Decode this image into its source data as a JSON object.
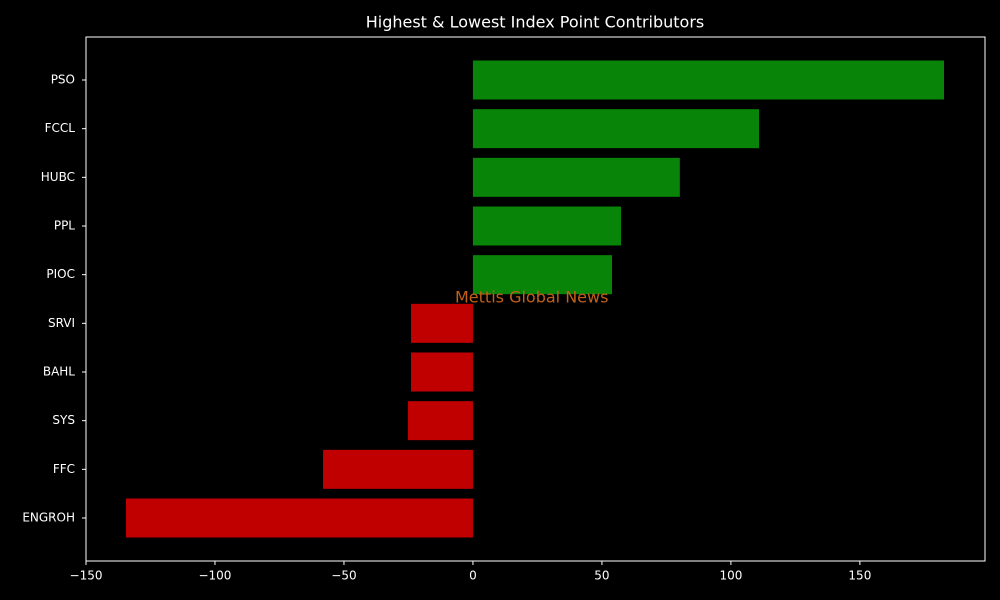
{
  "chart_data": {
    "type": "hbar",
    "title": "Highest & Lowest Index Point Contributors",
    "annotation": "Mettis Global News",
    "categories": [
      "PSO",
      "FCCL",
      "HUBC",
      "PPL",
      "PIOC",
      "SRVI",
      "BAHL",
      "SYS",
      "FFC",
      "ENGROH"
    ],
    "values": [
      182.6,
      110.9,
      80.2,
      57.4,
      53.9,
      -24.0,
      -24.0,
      -25.2,
      -58.1,
      -134.5
    ],
    "colors": [
      "#088508",
      "#088508",
      "#088508",
      "#088508",
      "#088508",
      "#c00000",
      "#c00000",
      "#c00000",
      "#c00000",
      "#c00000"
    ],
    "xlim": [
      -150,
      198.5
    ],
    "xticks": [
      {
        "value": -150,
        "label": "−150"
      },
      {
        "value": -100,
        "label": "−100"
      },
      {
        "value": -50,
        "label": "−50"
      },
      0,
      50,
      100,
      150
    ],
    "grid": false
  }
}
